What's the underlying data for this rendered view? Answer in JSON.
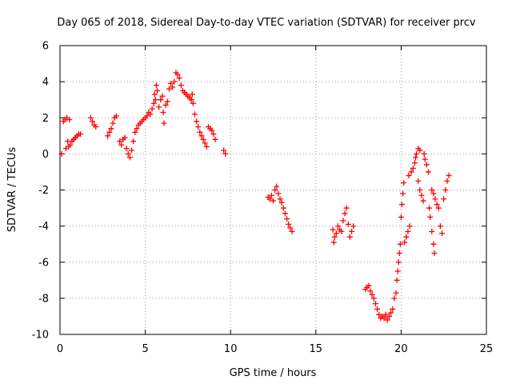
{
  "chart_data": {
    "type": "scatter",
    "title": "Day 065 of 2018, Sidereal Day-to-day VTEC variation (SDTVAR) for receiver prcv",
    "xlabel": "GPS time / hours",
    "ylabel": "SDTVAR / TECUs",
    "xlim": [
      0,
      25
    ],
    "ylim": [
      -10,
      6
    ],
    "xticks": [
      0,
      5,
      10,
      15,
      20,
      25
    ],
    "yticks": [
      -10,
      -8,
      -6,
      -4,
      -2,
      0,
      2,
      4,
      6
    ],
    "grid": true,
    "marker": "+",
    "color": "#ff0000",
    "series": [
      {
        "name": "SDTVAR",
        "points": [
          [
            0.1,
            0.0
          ],
          [
            0.2,
            1.8
          ],
          [
            0.3,
            1.9
          ],
          [
            0.35,
            0.3
          ],
          [
            0.4,
            2.0
          ],
          [
            0.45,
            0.7
          ],
          [
            0.5,
            0.4
          ],
          [
            0.55,
            1.9
          ],
          [
            0.6,
            0.5
          ],
          [
            0.7,
            0.7
          ],
          [
            0.8,
            0.8
          ],
          [
            0.9,
            0.9
          ],
          [
            1.0,
            1.0
          ],
          [
            1.1,
            1.1
          ],
          [
            1.2,
            1.1
          ],
          [
            1.8,
            2.0
          ],
          [
            1.9,
            1.8
          ],
          [
            2.0,
            1.6
          ],
          [
            2.1,
            1.5
          ],
          [
            2.8,
            1.0
          ],
          [
            2.9,
            1.2
          ],
          [
            3.0,
            1.4
          ],
          [
            3.1,
            1.7
          ],
          [
            3.2,
            2.0
          ],
          [
            3.3,
            2.1
          ],
          [
            3.5,
            0.7
          ],
          [
            3.6,
            0.5
          ],
          [
            3.7,
            0.8
          ],
          [
            3.8,
            0.9
          ],
          [
            3.9,
            0.3
          ],
          [
            4.0,
            0.0
          ],
          [
            4.1,
            -0.2
          ],
          [
            4.2,
            0.2
          ],
          [
            4.3,
            0.7
          ],
          [
            4.4,
            1.2
          ],
          [
            4.5,
            1.4
          ],
          [
            4.6,
            1.6
          ],
          [
            4.7,
            1.7
          ],
          [
            4.8,
            1.8
          ],
          [
            4.9,
            1.9
          ],
          [
            5.0,
            2.0
          ],
          [
            5.1,
            2.1
          ],
          [
            5.2,
            2.3
          ],
          [
            5.3,
            2.2
          ],
          [
            5.4,
            2.5
          ],
          [
            5.5,
            2.8
          ],
          [
            5.55,
            3.3
          ],
          [
            5.6,
            3.0
          ],
          [
            5.65,
            3.8
          ],
          [
            5.7,
            3.5
          ],
          [
            5.8,
            2.6
          ],
          [
            5.9,
            3.0
          ],
          [
            6.0,
            3.2
          ],
          [
            6.05,
            2.3
          ],
          [
            6.1,
            1.7
          ],
          [
            6.2,
            2.7
          ],
          [
            6.3,
            2.9
          ],
          [
            6.4,
            3.6
          ],
          [
            6.5,
            3.9
          ],
          [
            6.6,
            3.7
          ],
          [
            6.7,
            4.0
          ],
          [
            6.8,
            4.5
          ],
          [
            6.9,
            4.4
          ],
          [
            7.0,
            4.2
          ],
          [
            7.1,
            3.8
          ],
          [
            7.2,
            3.5
          ],
          [
            7.3,
            3.4
          ],
          [
            7.4,
            3.3
          ],
          [
            7.5,
            3.2
          ],
          [
            7.6,
            3.1
          ],
          [
            7.7,
            3.0
          ],
          [
            7.75,
            3.3
          ],
          [
            7.8,
            2.8
          ],
          [
            7.9,
            2.2
          ],
          [
            8.0,
            1.8
          ],
          [
            8.1,
            1.5
          ],
          [
            8.2,
            1.2
          ],
          [
            8.3,
            1.0
          ],
          [
            8.4,
            0.8
          ],
          [
            8.5,
            0.6
          ],
          [
            8.6,
            0.4
          ],
          [
            8.7,
            1.5
          ],
          [
            8.8,
            1.4
          ],
          [
            8.9,
            1.3
          ],
          [
            9.0,
            1.1
          ],
          [
            9.1,
            0.8
          ],
          [
            9.6,
            0.2
          ],
          [
            9.7,
            0.0
          ],
          [
            12.2,
            -2.4
          ],
          [
            12.3,
            -2.5
          ],
          [
            12.4,
            -2.3
          ],
          [
            12.5,
            -2.6
          ],
          [
            12.6,
            -2.0
          ],
          [
            12.7,
            -1.8
          ],
          [
            12.8,
            -2.2
          ],
          [
            12.9,
            -2.5
          ],
          [
            13.0,
            -2.7
          ],
          [
            13.1,
            -3.0
          ],
          [
            13.2,
            -3.3
          ],
          [
            13.3,
            -3.6
          ],
          [
            13.4,
            -3.9
          ],
          [
            13.5,
            -4.1
          ],
          [
            13.6,
            -4.3
          ],
          [
            16.0,
            -4.2
          ],
          [
            16.05,
            -4.9
          ],
          [
            16.1,
            -4.6
          ],
          [
            16.2,
            -4.4
          ],
          [
            16.3,
            -4.0
          ],
          [
            16.4,
            -4.2
          ],
          [
            16.5,
            -4.3
          ],
          [
            16.6,
            -3.7
          ],
          [
            16.7,
            -3.3
          ],
          [
            16.8,
            -3.0
          ],
          [
            16.9,
            -3.9
          ],
          [
            17.0,
            -4.6
          ],
          [
            17.1,
            -4.3
          ],
          [
            17.2,
            -4.0
          ],
          [
            17.9,
            -7.5
          ],
          [
            18.0,
            -7.4
          ],
          [
            18.1,
            -7.3
          ],
          [
            18.2,
            -7.6
          ],
          [
            18.3,
            -7.8
          ],
          [
            18.4,
            -8.0
          ],
          [
            18.5,
            -8.3
          ],
          [
            18.6,
            -8.6
          ],
          [
            18.7,
            -8.9
          ],
          [
            18.8,
            -9.1
          ],
          [
            18.9,
            -9.0
          ],
          [
            19.0,
            -9.1
          ],
          [
            19.1,
            -8.9
          ],
          [
            19.2,
            -9.2
          ],
          [
            19.3,
            -9.0
          ],
          [
            19.4,
            -8.8
          ],
          [
            19.5,
            -8.6
          ],
          [
            19.6,
            -8.0
          ],
          [
            19.7,
            -7.7
          ],
          [
            19.75,
            -7.0
          ],
          [
            19.8,
            -6.5
          ],
          [
            19.85,
            -6.0
          ],
          [
            19.9,
            -5.5
          ],
          [
            19.95,
            -5.0
          ],
          [
            20.0,
            -3.5
          ],
          [
            20.05,
            -2.8
          ],
          [
            20.1,
            -2.2
          ],
          [
            20.15,
            -1.6
          ],
          [
            20.2,
            -4.9
          ],
          [
            20.3,
            -4.6
          ],
          [
            20.4,
            -4.3
          ],
          [
            20.5,
            -4.0
          ],
          [
            20.45,
            -1.2
          ],
          [
            20.6,
            -1.0
          ],
          [
            20.7,
            -0.8
          ],
          [
            20.8,
            -0.5
          ],
          [
            20.85,
            -0.2
          ],
          [
            20.9,
            0.0
          ],
          [
            21.0,
            0.3
          ],
          [
            21.1,
            0.2
          ],
          [
            21.0,
            -1.5
          ],
          [
            21.1,
            -2.0
          ],
          [
            21.2,
            -2.3
          ],
          [
            21.3,
            -2.6
          ],
          [
            21.35,
            0.0
          ],
          [
            21.4,
            -0.3
          ],
          [
            21.5,
            -0.6
          ],
          [
            21.6,
            -1.0
          ],
          [
            21.65,
            -3.0
          ],
          [
            21.7,
            -3.5
          ],
          [
            21.8,
            -4.3
          ],
          [
            21.9,
            -5.0
          ],
          [
            21.95,
            -5.5
          ],
          [
            21.8,
            -2.0
          ],
          [
            21.9,
            -2.2
          ],
          [
            22.0,
            -2.5
          ],
          [
            22.1,
            -2.8
          ],
          [
            22.2,
            -3.0
          ],
          [
            22.3,
            -4.0
          ],
          [
            22.4,
            -4.4
          ],
          [
            22.5,
            -2.5
          ],
          [
            22.6,
            -2.0
          ],
          [
            22.7,
            -1.5
          ],
          [
            22.8,
            -1.2
          ]
        ]
      }
    ]
  }
}
